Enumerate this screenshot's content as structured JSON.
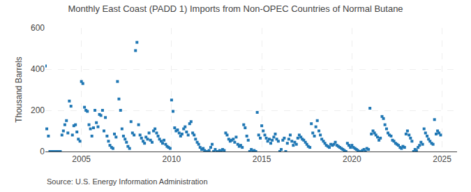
{
  "chart_data": {
    "type": "scatter",
    "title": "Monthly East Coast (PADD 1) Imports from Non-OPEC Countries of Normal Butane",
    "ylabel": "Thousand Barrels",
    "annotations": [
      "Source: U.S. Energy Information Administration"
    ],
    "marker": "square",
    "grid": true,
    "xlim": [
      2003.0,
      2025.83
    ],
    "xticks": [
      2005,
      2010,
      2015,
      2020,
      2025
    ],
    "ylim": [
      0,
      600
    ],
    "yticks": [
      0,
      200,
      400,
      600
    ],
    "x": [
      2003.0,
      2003.08,
      2003.17,
      2003.25,
      2003.33,
      2003.42,
      2003.5,
      2003.58,
      2003.67,
      2003.75,
      2003.83,
      2003.92,
      2004.0,
      2004.08,
      2004.17,
      2004.25,
      2004.33,
      2004.42,
      2004.5,
      2004.58,
      2004.67,
      2004.75,
      2004.83,
      2004.92,
      2005.0,
      2005.08,
      2005.17,
      2005.25,
      2005.33,
      2005.42,
      2005.5,
      2005.58,
      2005.67,
      2005.75,
      2005.83,
      2005.92,
      2006.0,
      2006.08,
      2006.17,
      2006.25,
      2006.33,
      2006.42,
      2006.5,
      2006.58,
      2006.67,
      2006.75,
      2006.83,
      2006.92,
      2007.0,
      2007.08,
      2007.17,
      2007.25,
      2007.33,
      2007.42,
      2007.5,
      2007.58,
      2007.67,
      2007.75,
      2007.83,
      2007.92,
      2008.0,
      2008.08,
      2008.17,
      2008.25,
      2008.33,
      2008.42,
      2008.5,
      2008.58,
      2008.67,
      2008.75,
      2008.83,
      2008.92,
      2009.0,
      2009.08,
      2009.17,
      2009.25,
      2009.33,
      2009.42,
      2009.5,
      2009.58,
      2009.67,
      2009.75,
      2009.83,
      2009.92,
      2010.0,
      2010.08,
      2010.17,
      2010.25,
      2010.33,
      2010.42,
      2010.5,
      2010.58,
      2010.67,
      2010.75,
      2010.83,
      2010.92,
      2011.0,
      2011.08,
      2011.17,
      2011.25,
      2011.33,
      2011.42,
      2011.5,
      2011.58,
      2011.67,
      2011.75,
      2011.83,
      2011.92,
      2012.0,
      2012.08,
      2012.17,
      2012.25,
      2012.33,
      2012.42,
      2012.5,
      2012.58,
      2012.67,
      2012.75,
      2012.83,
      2012.92,
      2013.0,
      2013.08,
      2013.17,
      2013.25,
      2013.33,
      2013.42,
      2013.5,
      2013.58,
      2013.67,
      2013.75,
      2013.83,
      2013.92,
      2014.0,
      2014.08,
      2014.17,
      2014.25,
      2014.33,
      2014.42,
      2014.5,
      2014.58,
      2014.67,
      2014.75,
      2014.83,
      2014.92,
      2015.0,
      2015.08,
      2015.17,
      2015.25,
      2015.33,
      2015.42,
      2015.5,
      2015.58,
      2015.67,
      2015.75,
      2015.83,
      2015.92,
      2016.0,
      2016.08,
      2016.17,
      2016.25,
      2016.33,
      2016.42,
      2016.5,
      2016.58,
      2016.67,
      2016.75,
      2016.83,
      2016.92,
      2017.0,
      2017.08,
      2017.17,
      2017.25,
      2017.33,
      2017.42,
      2017.5,
      2017.58,
      2017.67,
      2017.75,
      2017.83,
      2017.92,
      2018.0,
      2018.08,
      2018.17,
      2018.25,
      2018.33,
      2018.42,
      2018.5,
      2018.58,
      2018.67,
      2018.75,
      2018.83,
      2018.92,
      2019.0,
      2019.08,
      2019.17,
      2019.25,
      2019.33,
      2019.42,
      2019.5,
      2019.58,
      2019.67,
      2019.75,
      2019.83,
      2019.92,
      2020.0,
      2020.08,
      2020.17,
      2020.25,
      2020.33,
      2020.42,
      2020.5,
      2020.58,
      2020.67,
      2020.75,
      2020.83,
      2020.92,
      2021.0,
      2021.08,
      2021.17,
      2021.25,
      2021.33,
      2021.42,
      2021.5,
      2021.58,
      2021.67,
      2021.75,
      2021.83,
      2021.92,
      2022.0,
      2022.08,
      2022.17,
      2022.25,
      2022.33,
      2022.42,
      2022.5,
      2022.58,
      2022.67,
      2022.75,
      2022.83,
      2022.92,
      2023.0,
      2023.08,
      2023.17,
      2023.25,
      2023.33,
      2023.42,
      2023.5,
      2023.58,
      2023.67,
      2023.75,
      2023.83,
      2023.92,
      2024.0,
      2024.08,
      2024.17,
      2024.25,
      2024.33,
      2024.42,
      2024.5,
      2024.58,
      2024.67,
      2024.75,
      2024.83,
      2024.92
    ],
    "values": [
      415,
      110,
      75,
      0,
      0,
      0,
      0,
      0,
      0,
      0,
      0,
      80,
      100,
      130,
      150,
      90,
      245,
      220,
      80,
      125,
      130,
      95,
      60,
      50,
      340,
      330,
      215,
      200,
      195,
      130,
      110,
      75,
      115,
      200,
      140,
      120,
      180,
      175,
      200,
      100,
      165,
      75,
      50,
      30,
      20,
      15,
      85,
      70,
      340,
      255,
      200,
      110,
      75,
      60,
      45,
      25,
      15,
      145,
      90,
      80,
      490,
      530,
      130,
      80,
      65,
      50,
      40,
      70,
      60,
      90,
      55,
      45,
      100,
      110,
      90,
      75,
      60,
      50,
      40,
      55,
      35,
      25,
      20,
      15,
      250,
      195,
      115,
      100,
      105,
      90,
      75,
      85,
      110,
      120,
      95,
      80,
      135,
      145,
      90,
      80,
      60,
      45,
      35,
      20,
      10,
      15,
      5,
      0,
      0,
      5,
      20,
      35,
      0,
      10,
      0,
      0,
      5,
      0,
      10,
      5,
      90,
      80,
      60,
      50,
      55,
      60,
      45,
      70,
      35,
      25,
      30,
      20,
      130,
      115,
      75,
      55,
      0,
      10,
      0,
      5,
      0,
      190,
      80,
      65,
      125,
      100,
      80,
      65,
      50,
      60,
      40,
      55,
      70,
      85,
      60,
      50,
      0,
      10,
      55,
      65,
      0,
      40,
      60,
      80,
      50,
      30,
      45,
      35,
      65,
      80,
      70,
      60,
      55,
      45,
      35,
      25,
      20,
      135,
      90,
      75,
      120,
      150,
      100,
      80,
      60,
      50,
      40,
      30,
      25,
      20,
      35,
      30,
      35,
      45,
      30,
      25,
      20,
      15,
      10,
      5,
      0,
      40,
      30,
      20,
      30,
      20,
      15,
      10,
      5,
      0,
      0,
      5,
      10,
      0,
      15,
      10,
      210,
      85,
      100,
      90,
      80,
      70,
      55,
      65,
      170,
      160,
      130,
      110,
      90,
      80,
      75,
      55,
      50,
      40,
      35,
      30,
      20,
      15,
      25,
      20,
      85,
      100,
      80,
      65,
      50,
      0,
      10,
      5,
      20,
      30,
      45,
      35,
      110,
      90,
      75,
      60,
      50,
      40,
      35,
      155,
      85,
      100,
      90,
      80
    ]
  }
}
